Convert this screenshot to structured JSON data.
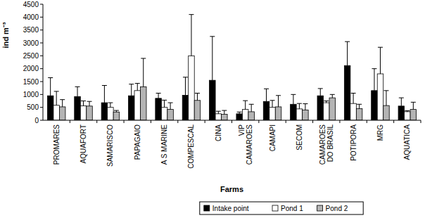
{
  "chart_data": {
    "type": "bar",
    "x_label": "Farms",
    "y_label": "ind m⁻³",
    "categories": [
      "PROMARES",
      "AQUAFORT",
      "SAMARISCO",
      "PAPAGAIO",
      "A S MARINE",
      "COMPESCAL",
      "CINA",
      "VIP CAMAROES",
      "CAMAPI",
      "SECOM",
      "CAMAROES DO BRASIL",
      "POTIPORA",
      "MRG",
      "AQUATICA"
    ],
    "series": [
      {
        "name": "Intake point",
        "color": "#000000",
        "values": [
          950,
          920,
          680,
          950,
          850,
          970,
          1550,
          250,
          730,
          620,
          950,
          2120,
          1150,
          550
        ],
        "errors": [
          700,
          380,
          670,
          450,
          200,
          700,
          1700,
          70,
          490,
          380,
          280,
          930,
          850,
          320
        ]
      },
      {
        "name": "Pond 1",
        "color": "#ffffff",
        "values": [
          580,
          560,
          500,
          1150,
          500,
          2500,
          250,
          420,
          500,
          440,
          680,
          650,
          1800,
          330
        ],
        "errors": [
          540,
          190,
          180,
          280,
          280,
          1600,
          100,
          340,
          270,
          210,
          70,
          400,
          1030,
          40
        ]
      },
      {
        "name": "Pond 2",
        "color": "#b4b4b4",
        "values": [
          520,
          550,
          320,
          1300,
          420,
          770,
          230,
          330,
          520,
          400,
          870,
          450,
          570,
          420
        ],
        "errors": [
          280,
          180,
          60,
          1100,
          260,
          280,
          150,
          290,
          440,
          240,
          130,
          170,
          580,
          280
        ]
      }
    ],
    "ylim": [
      0,
      4500
    ],
    "yticks": [
      0,
      500,
      1000,
      1500,
      2000,
      2500,
      3000,
      3500,
      4000,
      4500
    ],
    "grid": false,
    "legend": "bottom"
  }
}
